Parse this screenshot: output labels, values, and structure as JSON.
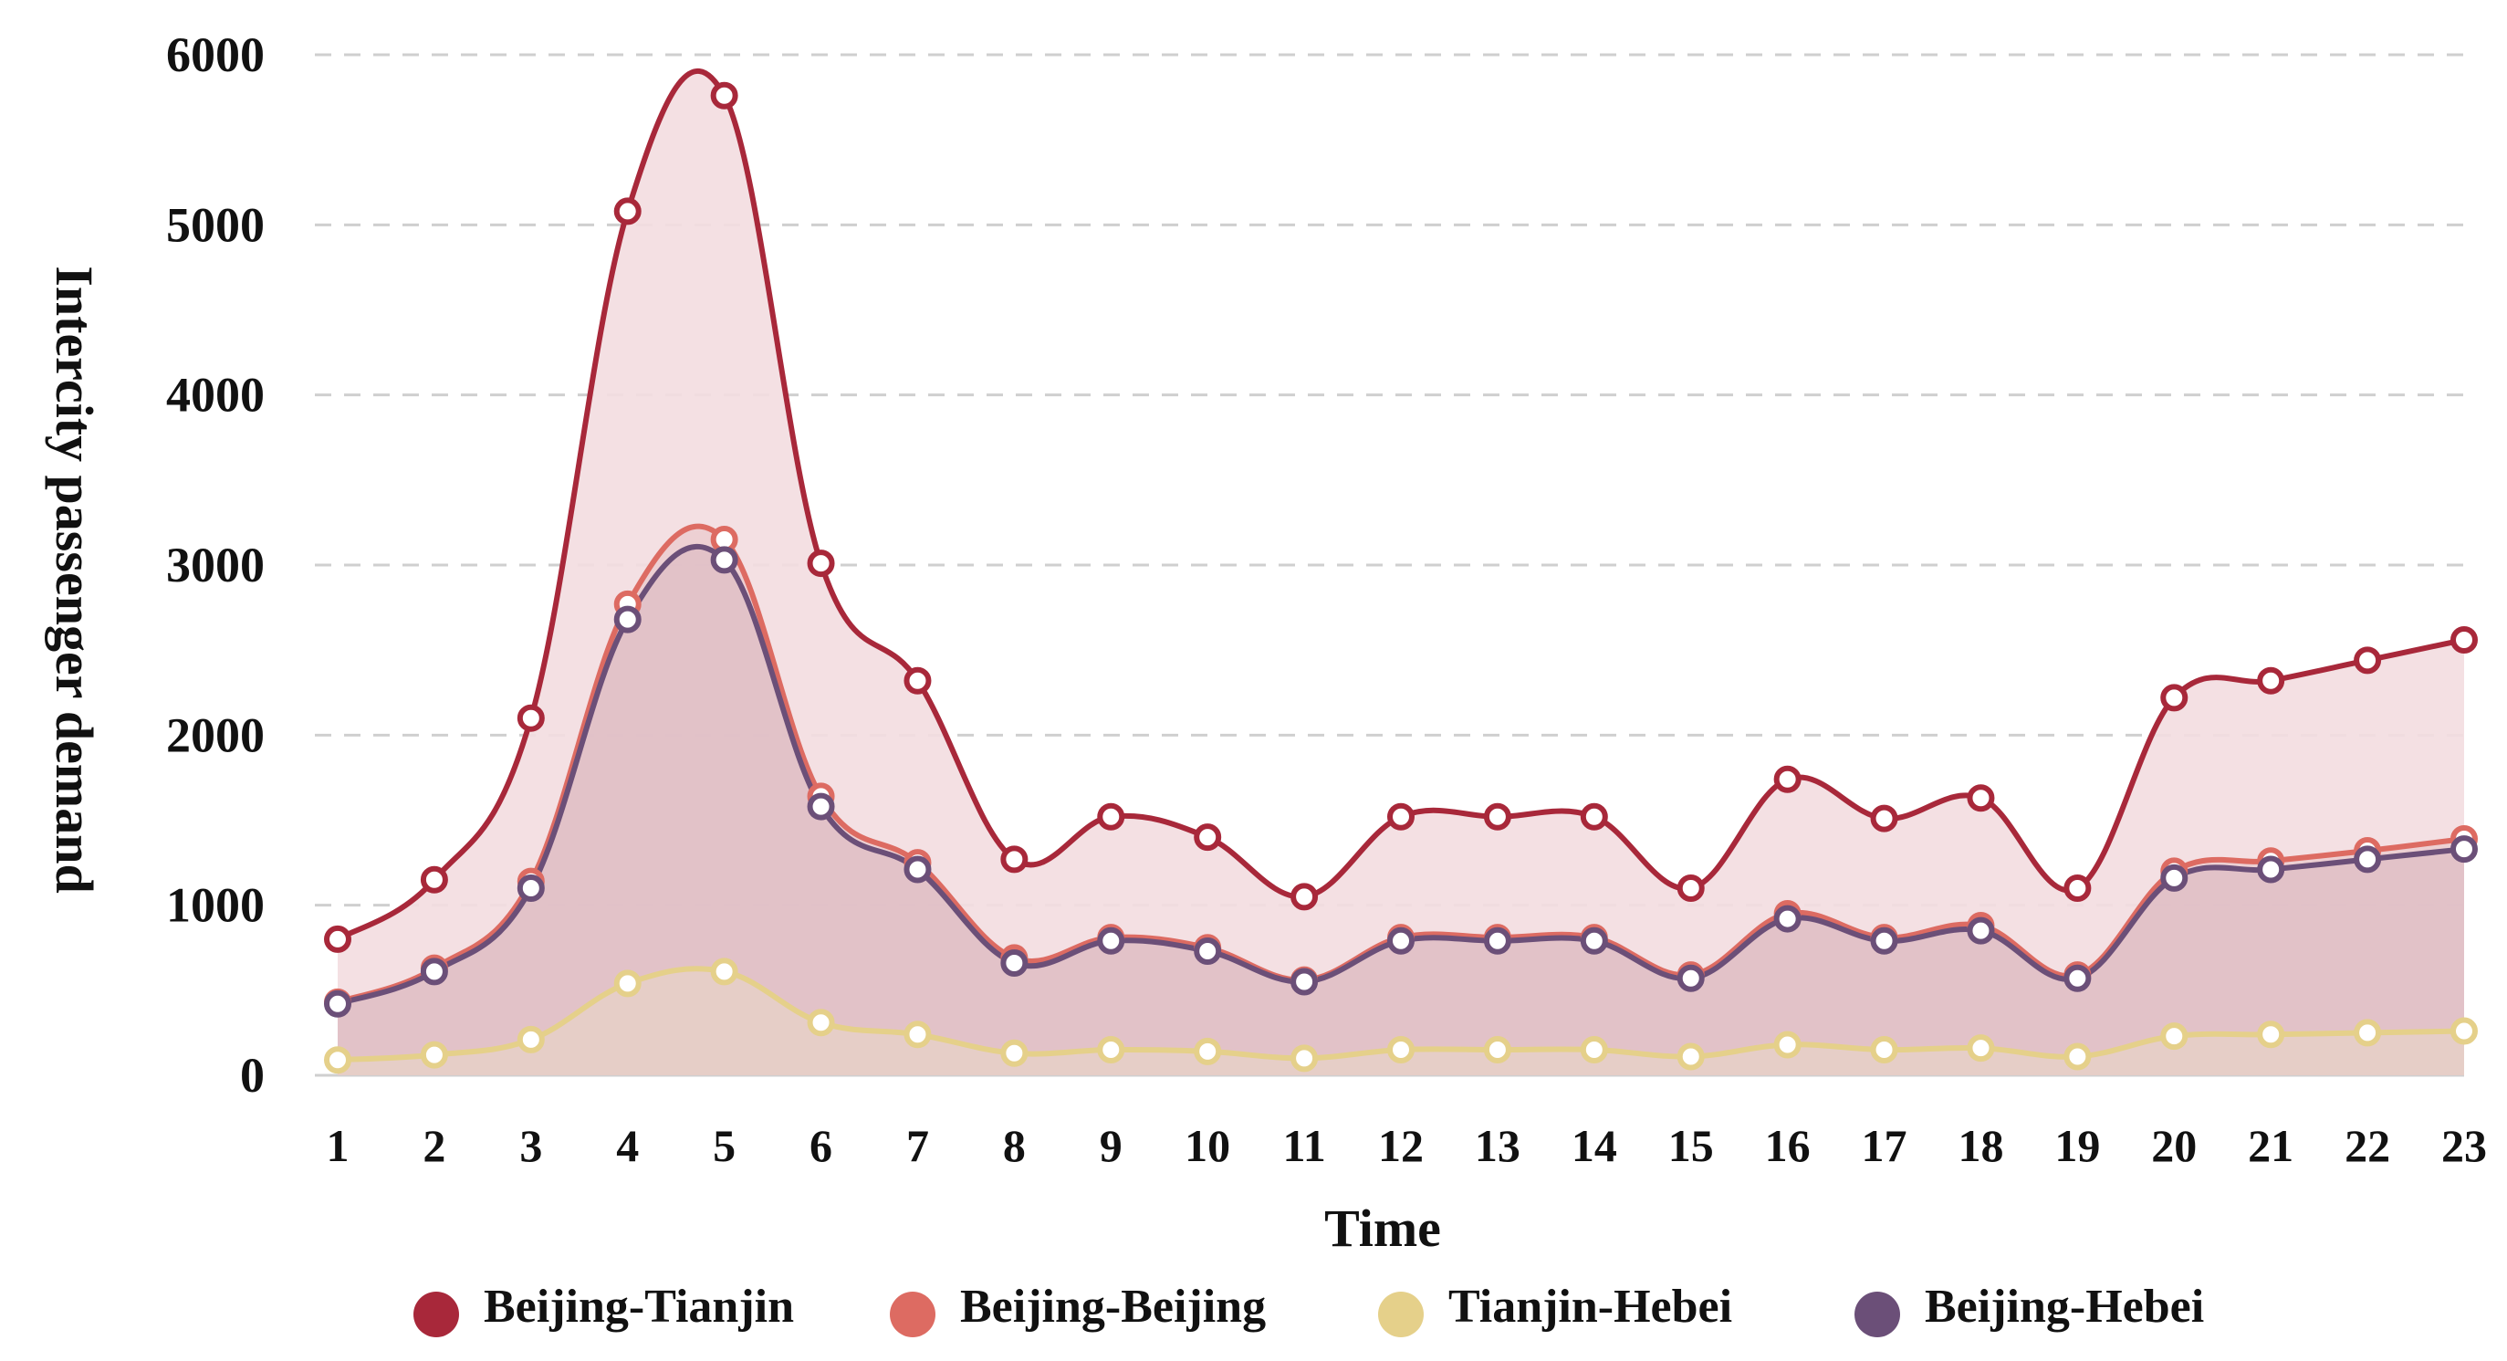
{
  "chart_data": {
    "type": "area",
    "title": "",
    "xlabel": "Time",
    "ylabel": "Intercity passenger demand",
    "ylim": [
      0,
      6000
    ],
    "yticks": [
      0,
      1000,
      2000,
      3000,
      4000,
      5000,
      6000
    ],
    "categories": [
      "1",
      "2",
      "3",
      "4",
      "5",
      "6",
      "7",
      "8",
      "9",
      "10",
      "11",
      "12",
      "13",
      "14",
      "15",
      "16",
      "17",
      "18",
      "19",
      "20",
      "21",
      "22",
      "23"
    ],
    "legend_position": "bottom",
    "grid": true,
    "series": [
      {
        "name": "Beijing-Tianjin",
        "color": "#a8283a",
        "values": [
          800,
          1150,
          2100,
          5080,
          5760,
          3010,
          2320,
          1270,
          1520,
          1400,
          1050,
          1520,
          1520,
          1520,
          1100,
          1740,
          1510,
          1630,
          1100,
          2220,
          2320,
          2440,
          2560
        ]
      },
      {
        "name": "Beijing-Beijing",
        "color": "#dd6b62",
        "values": [
          430,
          630,
          1140,
          2770,
          3150,
          1640,
          1250,
          690,
          810,
          750,
          560,
          810,
          810,
          810,
          590,
          950,
          810,
          880,
          590,
          1200,
          1260,
          1320,
          1390
        ]
      },
      {
        "name": "Tianjin-Hebei",
        "color": "#e5d08a",
        "values": [
          90,
          120,
          210,
          540,
          610,
          310,
          240,
          130,
          150,
          140,
          100,
          150,
          150,
          150,
          110,
          180,
          150,
          160,
          110,
          230,
          240,
          250,
          260
        ]
      },
      {
        "name": "Beijing-Hebei",
        "color": "#6b4f78",
        "values": [
          420,
          610,
          1100,
          2680,
          3030,
          1580,
          1210,
          660,
          790,
          730,
          550,
          790,
          790,
          790,
          570,
          920,
          790,
          850,
          570,
          1160,
          1210,
          1270,
          1330
        ]
      }
    ]
  }
}
